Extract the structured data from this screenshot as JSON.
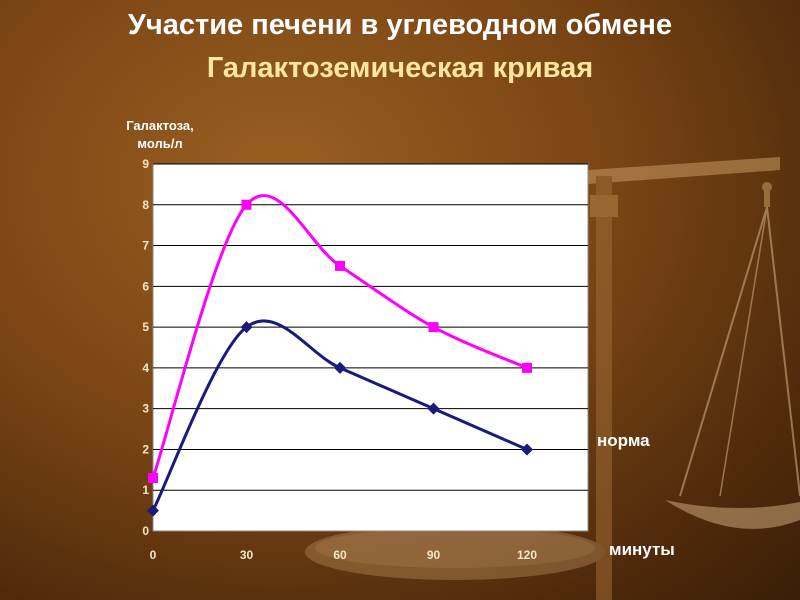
{
  "slide": {
    "title": "Участие печени в углеводном обмене",
    "subtitle": "Галактоземическая кривая",
    "label_norma": "норма",
    "label_minutes": "минуты"
  },
  "colors": {
    "background": "#7a4514",
    "title": "#ffffff",
    "subtitle": "#ffe7a0",
    "plot_area": "#ffffff",
    "ticks": "#f3e7c8",
    "series_magenta": "#ff00ff",
    "series_navy": "#1a1a7a"
  },
  "decor": [
    "scales-icon",
    "bowl-icon"
  ],
  "chart_data": {
    "type": "line",
    "title": "",
    "xlabel": "",
    "ylabel": "Галактоза,\nмоль/л",
    "x": [
      0,
      30,
      60,
      90,
      120
    ],
    "x_tick_labels": [
      "0",
      "30",
      "60",
      "90",
      "120"
    ],
    "y_tick_labels": [
      "0",
      "1",
      "2",
      "3",
      "4",
      "5",
      "6",
      "7",
      "8",
      "9"
    ],
    "ylim": [
      0,
      9
    ],
    "grid": true,
    "smoothed": true,
    "series": [
      {
        "values": [
          1.3,
          8,
          6.5,
          5,
          4
        ],
        "color": "#ff00ff",
        "marker": "square"
      },
      {
        "values": [
          0.5,
          5,
          4,
          3,
          2
        ],
        "color": "#1a1a7a",
        "marker": "diamond"
      }
    ]
  }
}
